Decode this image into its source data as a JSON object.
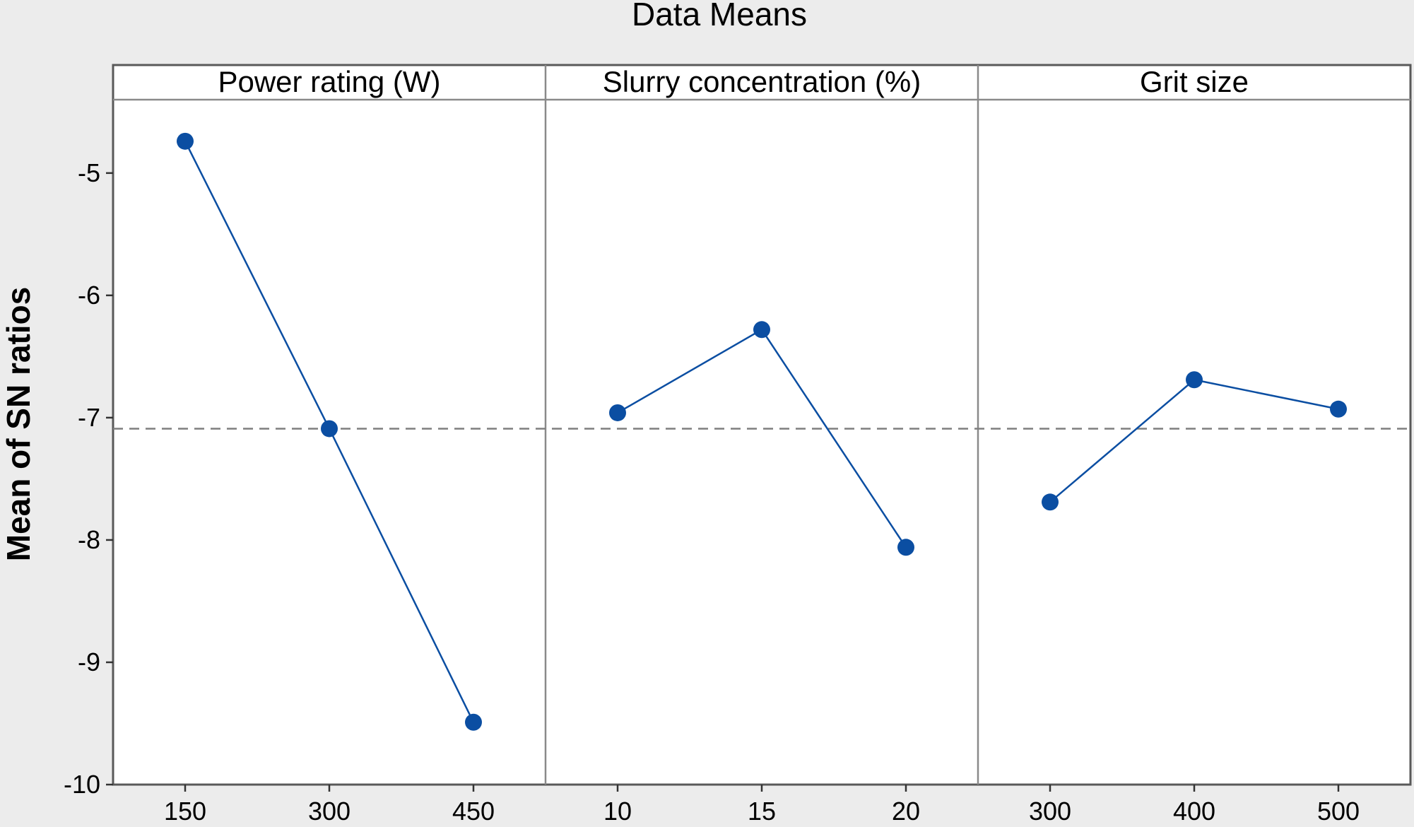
{
  "chart_data": {
    "type": "line",
    "title": "Data Means",
    "ylabel": "Mean of SN ratios",
    "ylim": [
      -10,
      -4.4
    ],
    "yticks": [
      -5,
      -6,
      -7,
      -8,
      -9,
      -10
    ],
    "reference_line": -7.09,
    "grid": false,
    "series_color": "#0b4ea2",
    "reference_color": "#7f7f7f",
    "panels": [
      {
        "name": "Power rating (W)",
        "categories": [
          "150",
          "300",
          "450"
        ],
        "values": [
          -4.74,
          -7.09,
          -9.49
        ]
      },
      {
        "name": "Slurry concentration (%)",
        "categories": [
          "10",
          "15",
          "20"
        ],
        "values": [
          -6.96,
          -6.28,
          -8.06
        ]
      },
      {
        "name": "Grit size",
        "categories": [
          "300",
          "400",
          "500"
        ],
        "values": [
          -7.69,
          -6.69,
          -6.93
        ]
      }
    ]
  }
}
